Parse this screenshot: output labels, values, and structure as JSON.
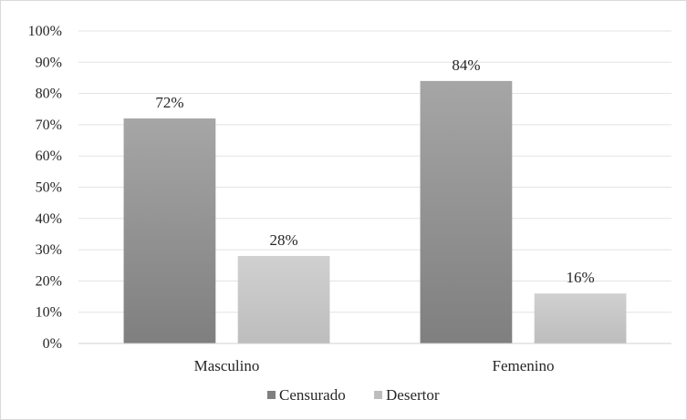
{
  "chart_data": {
    "type": "bar",
    "categories": [
      "Masculino",
      "Femenino"
    ],
    "series": [
      {
        "name": "Censurado",
        "values": [
          72,
          84
        ],
        "labels": [
          "72%",
          "84%"
        ],
        "color_top": "#a6a6a6",
        "color_bottom": "#7f7f7f"
      },
      {
        "name": "Desertor",
        "values": [
          28,
          16
        ],
        "labels": [
          "28%",
          "16%"
        ],
        "color_top": "#d0d0d0",
        "color_bottom": "#bdbdbd"
      }
    ],
    "y_ticks": [
      "0%",
      "10%",
      "20%",
      "30%",
      "40%",
      "50%",
      "60%",
      "70%",
      "80%",
      "90%",
      "100%"
    ],
    "ylim": [
      0,
      100
    ],
    "grid": true,
    "legend_position": "bottom",
    "title": "",
    "xlabel": "",
    "ylabel": ""
  }
}
